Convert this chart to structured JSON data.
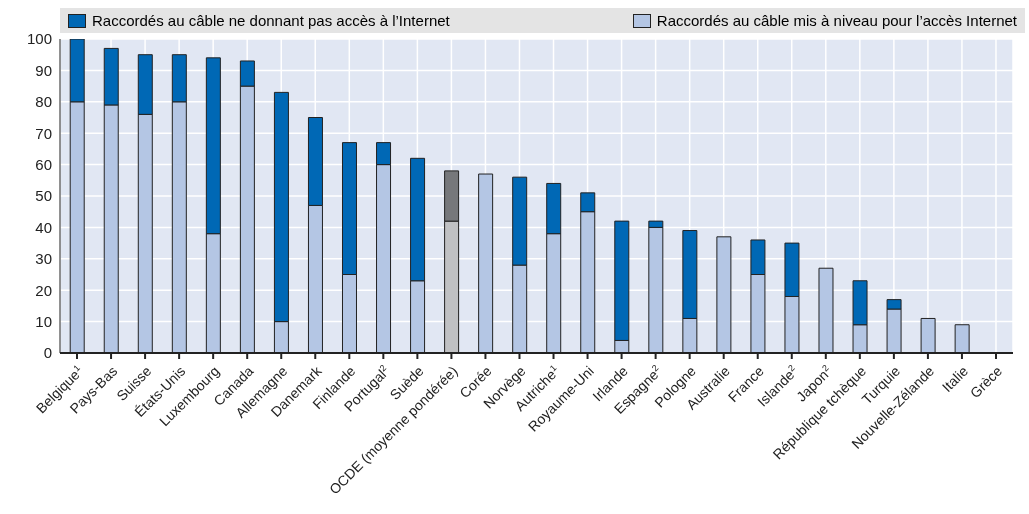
{
  "chart_data": {
    "type": "bar",
    "stacked": true,
    "legend": "top",
    "grid": true,
    "categories": [
      "Belgique$^{1}$",
      "Pays-Bas",
      "Suisse",
      "États-Unis",
      "Luxembourg",
      "Canada",
      "Allemagne",
      "Danemark",
      "Finlande",
      "Portugal$^{2}$",
      "Suède",
      "OCDE (moyenne pondérée)",
      "Corée",
      "Norvège",
      "Autriche$^{1}$",
      "Royaume-Uni",
      "Irlande",
      "Espagne$^{2}$",
      "Pologne",
      "Australie",
      "France",
      "Islande$^{2}$",
      "Japon$^{2}$",
      "République tchèque",
      "Turquie",
      "Nouvelle-Zélande",
      "Italie",
      "Grèce"
    ],
    "ylim": [
      0,
      100
    ],
    "yticks": [
      0,
      10,
      20,
      30,
      40,
      50,
      60,
      70,
      80,
      90,
      100
    ],
    "series": [
      {
        "name": "Raccordés au câble mis à niveau pour l’accès Internet",
        "color": "#b4c6e4",
        "colors": [
          "#b4c6e4",
          "#b4c6e4",
          "#b4c6e4",
          "#b4c6e4",
          "#b4c6e4",
          "#b4c6e4",
          "#b4c6e4",
          "#b4c6e4",
          "#b4c6e4",
          "#b4c6e4",
          "#b4c6e4",
          "#c0c1c3",
          "#b4c6e4",
          "#b4c6e4",
          "#b4c6e4",
          "#b4c6e4",
          "#b4c6e4",
          "#b4c6e4",
          "#b4c6e4",
          "#b4c6e4",
          "#b4c6e4",
          "#b4c6e4",
          "#b4c6e4",
          "#b4c6e4",
          "#b4c6e4",
          "#b4c6e4",
          "#b4c6e4",
          "#b4c6e4"
        ],
        "values": [
          80,
          79,
          76,
          80,
          38,
          85,
          10,
          47,
          25,
          60,
          23,
          42,
          57,
          28,
          38,
          45,
          4,
          40,
          11,
          37,
          25,
          18,
          27,
          9,
          14,
          11,
          9,
          null
        ]
      },
      {
        "name": "Raccordés au câble ne donnant pas accès à l’Internet",
        "color": "#0068b5",
        "colors": [
          "#0068b5",
          "#0068b5",
          "#0068b5",
          "#0068b5",
          "#0068b5",
          "#0068b5",
          "#0068b5",
          "#0068b5",
          "#0068b5",
          "#0068b5",
          "#0068b5",
          "#76787b",
          "#0068b5",
          "#0068b5",
          "#0068b5",
          "#0068b5",
          "#0068b5",
          "#0068b5",
          "#0068b5",
          "#0068b5",
          "#0068b5",
          "#0068b5",
          "#0068b5",
          "#0068b5",
          "#0068b5",
          "#0068b5",
          "#0068b5",
          "#0068b5"
        ],
        "values": [
          20,
          18,
          19,
          15,
          56,
          8,
          73,
          28,
          42,
          7,
          39,
          16,
          null,
          28,
          16,
          6,
          38,
          2,
          28,
          null,
          11,
          17,
          null,
          14,
          3,
          null,
          null,
          null
        ]
      }
    ]
  }
}
